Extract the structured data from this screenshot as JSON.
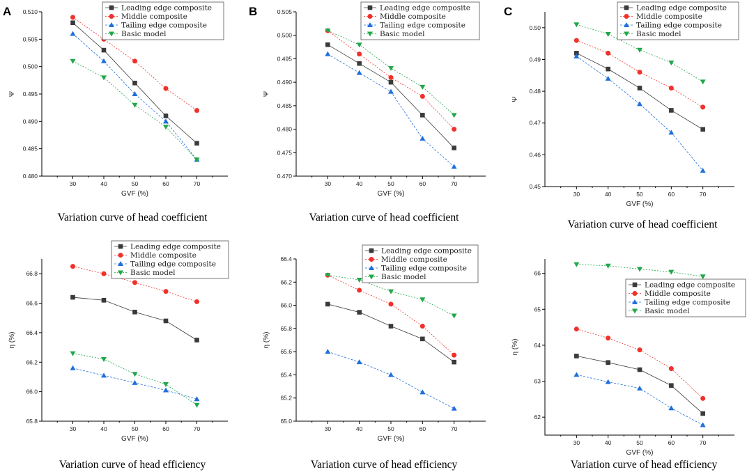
{
  "series_styles": [
    {
      "name": "Leading edge composite",
      "color": "#3a3a3a",
      "marker": "square",
      "dash": ""
    },
    {
      "name": "Middle composite",
      "color": "#f0302a",
      "marker": "circle",
      "dash": "2,2"
    },
    {
      "name": "Tailing edge composite",
      "color": "#1f6fdc",
      "marker": "triangle-up",
      "dash": "3,2"
    },
    {
      "name": "Basic model",
      "color": "#22a64a",
      "marker": "triangle-down",
      "dash": "2,2"
    }
  ],
  "chart_data": [
    {
      "id": "A-top",
      "panel_label": "A",
      "type": "line",
      "caption": "Variation curve of head coefficient",
      "xlabel": "GVF (%)",
      "ylabel": "Ψ",
      "x": [
        30,
        40,
        50,
        60,
        70
      ],
      "xticks": [
        "30",
        "40",
        "50",
        "60",
        "70"
      ],
      "ylim": [
        0.48,
        0.51
      ],
      "yticks": [
        "0.480",
        "0.485",
        "0.490",
        "0.495",
        "0.500",
        "0.505",
        "0.510"
      ],
      "legend": [
        "Leading edge composite",
        "Middle composite",
        "Tailing edge composite",
        "Basic model"
      ],
      "series": [
        {
          "name": "Leading edge composite",
          "values": [
            0.508,
            0.503,
            0.497,
            0.491,
            0.486
          ]
        },
        {
          "name": "Middle composite",
          "values": [
            0.509,
            0.505,
            0.501,
            0.496,
            0.492
          ]
        },
        {
          "name": "Tailing edge composite",
          "values": [
            0.506,
            0.501,
            0.495,
            0.49,
            0.483
          ]
        },
        {
          "name": "Basic model",
          "values": [
            0.501,
            0.498,
            0.493,
            0.489,
            0.483
          ]
        }
      ]
    },
    {
      "id": "B-top",
      "panel_label": "B",
      "type": "line",
      "caption": "Variation curve of head coefficient",
      "xlabel": "GVF (%)",
      "ylabel": "Ψ",
      "x": [
        30,
        40,
        50,
        60,
        70
      ],
      "xticks": [
        "30",
        "40",
        "50",
        "60",
        "70"
      ],
      "ylim": [
        0.47,
        0.505
      ],
      "yticks": [
        "0.470",
        "0.475",
        "0.480",
        "0.485",
        "0.490",
        "0.495",
        "0.500",
        "0.505"
      ],
      "legend": [
        "Leading edge composite",
        "Middle composite",
        "Tailing edge composite",
        "Basic model"
      ],
      "series": [
        {
          "name": "Leading edge composite",
          "values": [
            0.498,
            0.494,
            0.49,
            0.483,
            0.476
          ]
        },
        {
          "name": "Middle composite",
          "values": [
            0.501,
            0.496,
            0.491,
            0.487,
            0.48
          ]
        },
        {
          "name": "Tailing edge composite",
          "values": [
            0.496,
            0.492,
            0.488,
            0.478,
            0.472
          ]
        },
        {
          "name": "Basic model",
          "values": [
            0.501,
            0.498,
            0.493,
            0.489,
            0.483
          ]
        }
      ]
    },
    {
      "id": "C-top",
      "panel_label": "C",
      "type": "line",
      "caption": "Variation curve of head coefficient",
      "xlabel": "GVF (%)",
      "ylabel": "Ψ",
      "x": [
        30,
        40,
        50,
        60,
        70
      ],
      "xticks": [
        "30",
        "40",
        "50",
        "60",
        "70"
      ],
      "ylim": [
        0.45,
        0.505
      ],
      "yticks": [
        "0.45",
        "0.46",
        "0.47",
        "0.48",
        "0.49",
        "0.50"
      ],
      "legend": [
        "Leading edge composite",
        "Middle composite",
        "Tailing edge composite",
        "Basic model"
      ],
      "series": [
        {
          "name": "Leading edge composite",
          "values": [
            0.492,
            0.487,
            0.481,
            0.474,
            0.468
          ]
        },
        {
          "name": "Middle composite",
          "values": [
            0.496,
            0.492,
            0.486,
            0.481,
            0.475
          ]
        },
        {
          "name": "Tailing edge composite",
          "values": [
            0.491,
            0.484,
            0.476,
            0.467,
            0.455
          ]
        },
        {
          "name": "Basic model",
          "values": [
            0.501,
            0.498,
            0.493,
            0.489,
            0.483
          ]
        }
      ]
    },
    {
      "id": "A-bottom",
      "type": "line",
      "caption": "Variation curve of head efficiency",
      "xlabel": "GVF (%)",
      "ylabel": "η (%)",
      "x": [
        30,
        40,
        50,
        60,
        70
      ],
      "xticks": [
        "30",
        "40",
        "50",
        "60",
        "70"
      ],
      "ylim": [
        65.8,
        66.9
      ],
      "yticks": [
        "65.8",
        "66.0",
        "66.2",
        "66.4",
        "66.6",
        "66.8"
      ],
      "legend": [
        "Leading edge composite",
        "Middle composite",
        "Tailing edge composite",
        "Basic model"
      ],
      "series": [
        {
          "name": "Leading edge composite",
          "values": [
            66.64,
            66.62,
            66.54,
            66.48,
            66.35
          ]
        },
        {
          "name": "Middle composite",
          "values": [
            66.85,
            66.8,
            66.74,
            66.68,
            66.61
          ]
        },
        {
          "name": "Tailing edge composite",
          "values": [
            66.16,
            66.11,
            66.06,
            66.01,
            65.95
          ]
        },
        {
          "name": "Basic model",
          "values": [
            66.26,
            66.22,
            66.12,
            66.05,
            65.91
          ]
        }
      ]
    },
    {
      "id": "B-bottom",
      "type": "line",
      "caption": "Variation curve of head efficiency",
      "xlabel": "GVF (%)",
      "ylabel": "η (%)",
      "x": [
        30,
        40,
        50,
        60,
        70
      ],
      "xticks": [
        "30",
        "40",
        "50",
        "60",
        "70"
      ],
      "ylim": [
        65.0,
        66.4
      ],
      "yticks": [
        "65.0",
        "65.2",
        "65.4",
        "65.6",
        "65.8",
        "66.0",
        "66.2",
        "66.4"
      ],
      "legend": [
        "Leading edge composite",
        "Middle composite",
        "Tailing edge composite",
        "Basic model"
      ],
      "series": [
        {
          "name": "Leading edge composite",
          "values": [
            66.01,
            65.94,
            65.82,
            65.71,
            65.51
          ]
        },
        {
          "name": "Middle composite",
          "values": [
            66.26,
            66.13,
            66.01,
            65.82,
            65.57
          ]
        },
        {
          "name": "Tailing edge composite",
          "values": [
            65.6,
            65.51,
            65.4,
            65.25,
            65.11
          ]
        },
        {
          "name": "Basic model",
          "values": [
            66.26,
            66.22,
            66.12,
            66.05,
            65.91
          ]
        }
      ]
    },
    {
      "id": "C-bottom",
      "type": "line",
      "caption": "Variation curve of head efficiency",
      "xlabel": "GVF (%)",
      "ylabel": "η (%)",
      "x": [
        30,
        40,
        50,
        60,
        70
      ],
      "xticks": [
        "30",
        "40",
        "50",
        "60",
        "70"
      ],
      "ylim": [
        61.5,
        66.4
      ],
      "yticks": [
        "62",
        "63",
        "64",
        "65",
        "66"
      ],
      "legend": [
        "Leading edge composite",
        "Middle composite",
        "Tailing edge composite",
        "Basic model"
      ],
      "series": [
        {
          "name": "Leading edge composite",
          "values": [
            63.7,
            63.52,
            63.32,
            62.88,
            62.1
          ]
        },
        {
          "name": "Middle composite",
          "values": [
            64.45,
            64.2,
            63.87,
            63.35,
            62.52
          ]
        },
        {
          "name": "Tailing edge composite",
          "values": [
            63.18,
            62.98,
            62.8,
            62.25,
            61.78
          ]
        },
        {
          "name": "Basic model",
          "values": [
            66.25,
            66.21,
            66.12,
            66.04,
            65.91
          ]
        }
      ]
    }
  ]
}
